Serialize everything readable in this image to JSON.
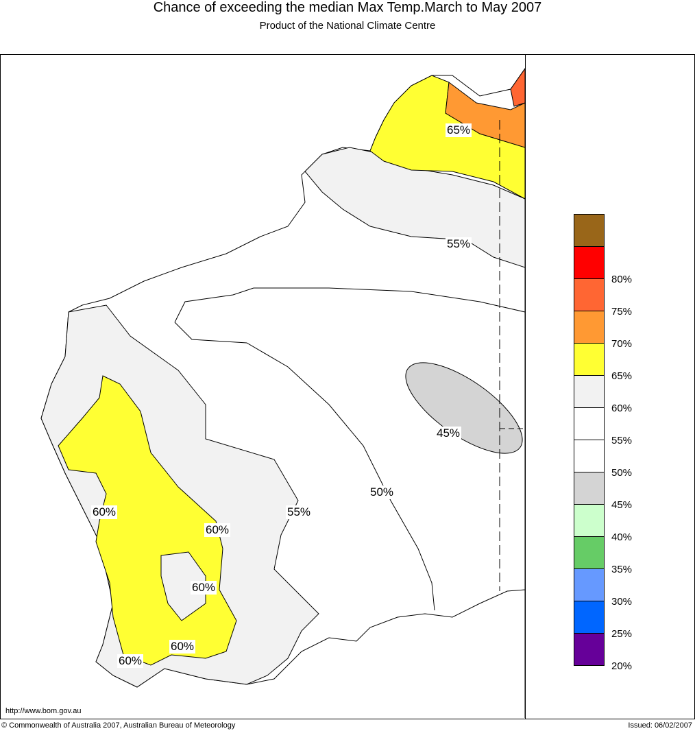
{
  "header": {
    "title": "Chance of exceeding the median Max Temp.March to May 2007",
    "subtitle": "Product of the National Climate Centre"
  },
  "map": {
    "contour_labels": [
      "65%",
      "55%",
      "45%",
      "50%",
      "55%",
      "60%",
      "60%",
      "60%",
      "60%",
      "60%"
    ]
  },
  "legend": {
    "items": [
      {
        "label": "",
        "color": "#996619"
      },
      {
        "label": "80%",
        "color": "#ff0000"
      },
      {
        "label": "75%",
        "color": "#ff6633"
      },
      {
        "label": "70%",
        "color": "#ff9933"
      },
      {
        "label": "65%",
        "color": "#ffff33"
      },
      {
        "label": "60%",
        "color": "#f2f2f2"
      },
      {
        "label": "55%",
        "color": "#ffffff"
      },
      {
        "label": "50%",
        "color": "#ffffff"
      },
      {
        "label": "45%",
        "color": "#d4d4d4"
      },
      {
        "label": "40%",
        "color": "#ccffcc"
      },
      {
        "label": "35%",
        "color": "#66cc66"
      },
      {
        "label": "30%",
        "color": "#6699ff"
      },
      {
        "label": "25%",
        "color": "#0066ff"
      },
      {
        "label": "20%",
        "color": "#660099"
      }
    ]
  },
  "footer": {
    "url": "http://www.bom.gov.au",
    "copyright": "© Commonwealth of Australia 2007, Australian Bureau of Meteorology",
    "issued": "Issued: 06/02/2007"
  }
}
